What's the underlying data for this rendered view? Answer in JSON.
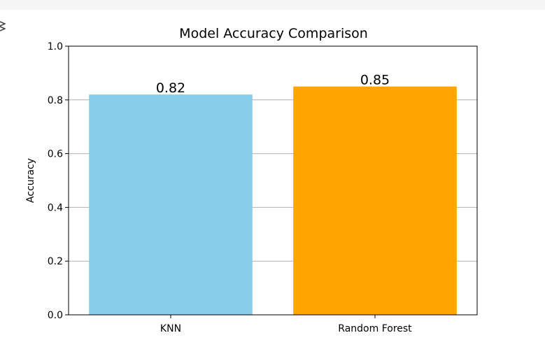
{
  "chart_data": {
    "type": "bar",
    "title": "Model Accuracy Comparison",
    "xlabel": "",
    "ylabel": "Accuracy",
    "categories": [
      "KNN",
      "Random Forest"
    ],
    "values": [
      0.82,
      0.85
    ],
    "value_labels": [
      "0.82",
      "0.85"
    ],
    "colors": [
      "#87ceeb",
      "#ffa500"
    ],
    "ylim": [
      0,
      1.0
    ],
    "yticks": [
      0.0,
      0.2,
      0.4,
      0.6,
      0.8,
      1.0
    ],
    "ytick_labels": [
      "0.0",
      "0.2",
      "0.4",
      "0.6",
      "0.8",
      "1.0"
    ],
    "grid": "y-axis on",
    "legend": "none"
  },
  "ui": {
    "cell_icon": "output-expand-icon"
  }
}
